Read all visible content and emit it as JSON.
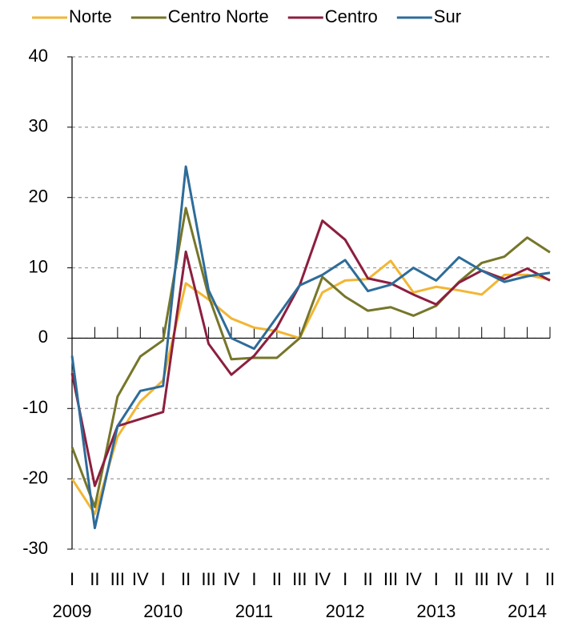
{
  "chart_data": {
    "type": "line",
    "categories": [
      "I",
      "II",
      "III",
      "IV",
      "I",
      "II",
      "III",
      "IV",
      "I",
      "II",
      "III",
      "IV",
      "I",
      "II",
      "III",
      "IV",
      "I",
      "II",
      "III",
      "IV",
      "I",
      "II"
    ],
    "years": [
      "2009",
      "2010",
      "2011",
      "2012",
      "2013",
      "2014"
    ],
    "series": [
      {
        "name": "Norte",
        "color": "#f2b634",
        "values": [
          -20,
          -25,
          -14,
          -9,
          -6,
          7.8,
          5.5,
          2.8,
          1.5,
          1,
          0,
          6.5,
          8.2,
          8.4,
          11,
          6.5,
          7.3,
          6.8,
          6.2,
          9,
          9,
          8.3
        ]
      },
      {
        "name": "Centro Norte",
        "color": "#76762a",
        "values": [
          -15.5,
          -24,
          -8.3,
          -2.6,
          -0.3,
          18.5,
          6,
          -3,
          -2.8,
          -2.8,
          0,
          8.7,
          5.9,
          3.9,
          4.4,
          3.2,
          4.6,
          8,
          10.7,
          11.6,
          14.3,
          12.2
        ]
      },
      {
        "name": "Centro",
        "color": "#8c1f3f",
        "values": [
          -5,
          -21,
          -12.5,
          -11.5,
          -10.5,
          12.3,
          -0.8,
          -5.2,
          -2.5,
          1.5,
          7.5,
          16.7,
          14,
          8.5,
          7.8,
          6.2,
          4.8,
          7.9,
          9.6,
          8.4,
          9.9,
          8.2
        ]
      },
      {
        "name": "Sur",
        "color": "#2e6c99",
        "values": [
          -2.5,
          -27,
          -12.5,
          -7.5,
          -6.8,
          24.4,
          6.8,
          0,
          -1.5,
          3,
          7.5,
          9,
          11.1,
          6.7,
          7.6,
          10,
          8.2,
          11.5,
          9.6,
          8,
          8.8,
          9.3
        ]
      }
    ],
    "ylim": [
      -30,
      40
    ],
    "yticks": [
      -30,
      -20,
      -10,
      0,
      10,
      20,
      30,
      40
    ],
    "grid": true
  }
}
